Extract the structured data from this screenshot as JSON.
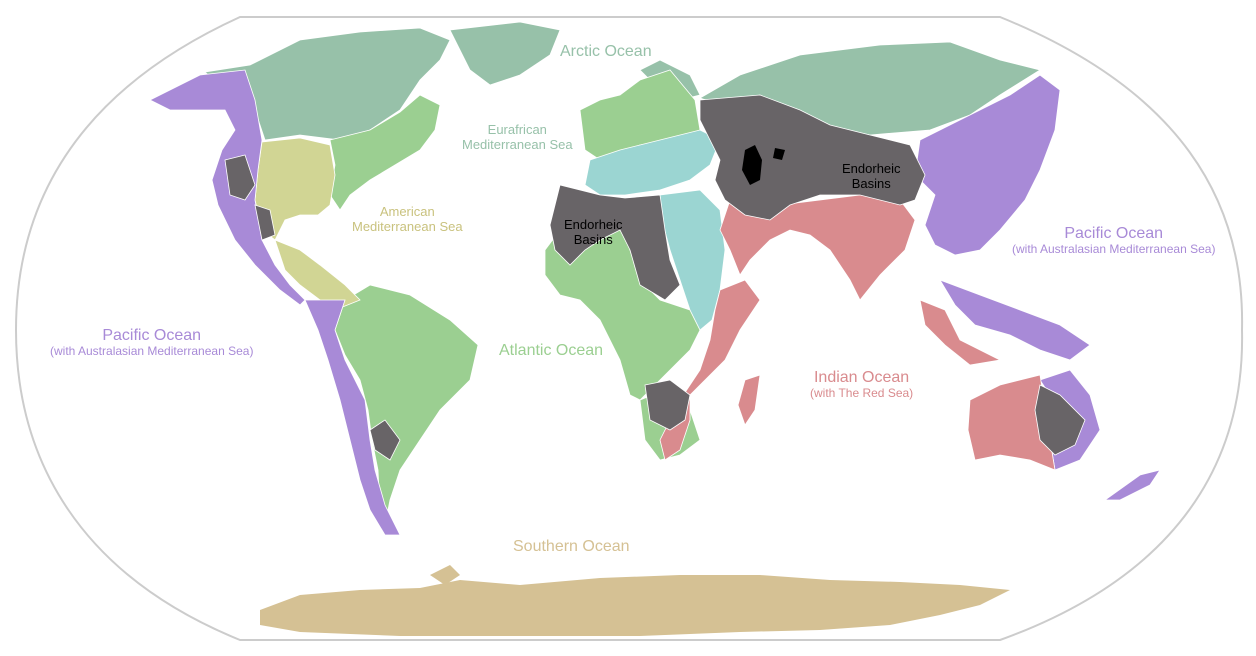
{
  "colors": {
    "arctic": "#97c1a9",
    "atlantic": "#9bcf91",
    "american_med": "#d1d594",
    "eurafrican_med": "#9bd5d2",
    "pacific": "#a88ad7",
    "indian": "#d98b8e",
    "endorheic": "#686467",
    "southern": "#d5c194",
    "lakes": "#000000",
    "graticule_outline": "#cccccc",
    "divide_line": "#555555"
  },
  "labels": {
    "arctic": "Arctic Ocean",
    "eurafrican": [
      "Eurafrican",
      "Mediterranean Sea"
    ],
    "american_med": [
      "American",
      "Mediterranean Sea"
    ],
    "endorheic_africa": [
      "Endorheic",
      "Basins"
    ],
    "endorheic_asia": [
      "Endorheic",
      "Basins"
    ],
    "pacific_east": {
      "title": "Pacific Ocean",
      "sub": "(with Australasian Mediterranean Sea)"
    },
    "pacific_west": {
      "title": "Pacific Ocean",
      "sub": "(with Australasian Mediterranean Sea)"
    },
    "atlantic": "Atlantic Ocean",
    "indian": {
      "title": "Indian Ocean",
      "sub": "(with The Red Sea)"
    },
    "southern": "Southern Ocean"
  }
}
